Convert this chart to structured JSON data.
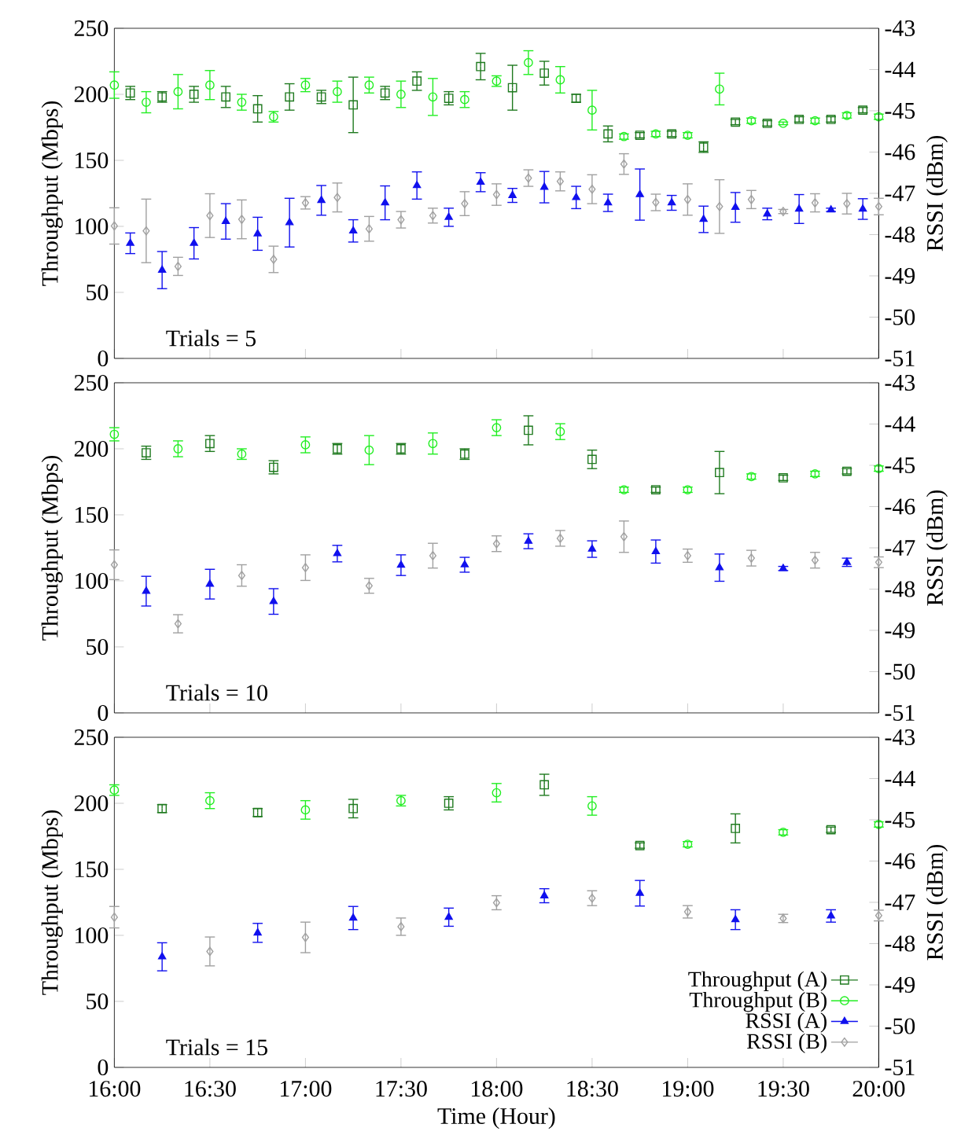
{
  "chart_data": [
    {
      "type": "scatter",
      "ylabel": "Throughput (Mbps)",
      "y2label": "RSSI (dBm)",
      "annotations": [
        "Trials = 5"
      ],
      "tick_labels": "y",
      "xlim": [
        16,
        20
      ],
      "xticks": [
        {
          "value": 16,
          "label": null
        },
        {
          "value": 16.5,
          "label": null
        },
        {
          "value": 17,
          "label": null
        },
        {
          "value": 17.5,
          "label": null
        },
        {
          "value": 18,
          "label": null
        },
        {
          "value": 18.5,
          "label": null
        },
        {
          "value": 19,
          "label": null
        },
        {
          "value": 19.5,
          "label": null
        },
        {
          "value": 20,
          "label": null
        }
      ],
      "ylim": [
        0,
        250
      ],
      "yticks": [
        0,
        50,
        100,
        150,
        200,
        250
      ],
      "y2lim": [
        -51,
        -43
      ],
      "y2ticks": [
        -51,
        -50,
        -49,
        -48,
        -47,
        -46,
        -45,
        -44,
        -43
      ],
      "series": [
        {
          "color": "#1f7a1f",
          "marker": "square",
          "x": [
            16.0833,
            16.25,
            16.4167,
            16.5833,
            16.75,
            16.9167,
            17.0833,
            17.25,
            17.4167,
            17.5833,
            17.75,
            17.9167,
            18.0833,
            18.25,
            18.4167,
            18.5833,
            18.75,
            18.9167,
            19.0833,
            19.25,
            19.4167,
            19.5833,
            19.75,
            19.9167
          ],
          "values": [
            201,
            198,
            200,
            198,
            189,
            198,
            198,
            192,
            201,
            210,
            197,
            221,
            205,
            216,
            197,
            170,
            169,
            170,
            160,
            179,
            178,
            181,
            181,
            188
          ],
          "errors": [
            5,
            4,
            6,
            8,
            10,
            10,
            5,
            21,
            5,
            7,
            5,
            10,
            17,
            9,
            3,
            6,
            2,
            2,
            4,
            2,
            2,
            2,
            2,
            2
          ]
        },
        {
          "color": "#22ee22",
          "marker": "circle",
          "x": [
            16,
            16.1667,
            16.3333,
            16.5,
            16.6667,
            16.8333,
            17,
            17.1667,
            17.3333,
            17.5,
            17.6667,
            17.8333,
            18,
            18.1667,
            18.3333,
            18.5,
            18.6667,
            18.8333,
            19,
            19.1667,
            19.3333,
            19.5,
            19.6667,
            19.8333,
            20
          ],
          "values": [
            207,
            194,
            202,
            207,
            194,
            183,
            207,
            202,
            207,
            200,
            198,
            196,
            210,
            224,
            211,
            188,
            168,
            170,
            169,
            204,
            180,
            178,
            180,
            184,
            183
          ],
          "errors": [
            10,
            8,
            13,
            11,
            6,
            4,
            5,
            8,
            6,
            10,
            14,
            6,
            4,
            9,
            10,
            15,
            2,
            2,
            2,
            12,
            2,
            1,
            2,
            2,
            2
          ]
        },
        {
          "color": "#1010ee",
          "marker": "triangle",
          "axis": "y2",
          "x": [
            16.0833,
            16.25,
            16.4167,
            16.5833,
            16.75,
            16.9167,
            17.0833,
            17.25,
            17.4167,
            17.5833,
            17.75,
            17.9167,
            18.0833,
            18.25,
            18.4167,
            18.5833,
            18.75,
            18.9167,
            19.0833,
            19.25,
            19.4167,
            19.5833,
            19.75,
            19.9167
          ],
          "values": [
            -48.21,
            -48.86,
            -48.21,
            -47.68,
            -47.98,
            -47.71,
            -47.17,
            -47.91,
            -47.23,
            -46.81,
            -47.58,
            -46.73,
            -47.05,
            -46.85,
            -47.1,
            -47.23,
            -47.03,
            -47.23,
            -47.63,
            -47.34,
            -47.5,
            -47.38,
            -47.4,
            -47.38
          ],
          "errors": [
            0.25,
            0.45,
            0.38,
            0.43,
            0.4,
            0.59,
            0.36,
            0.27,
            0.41,
            0.33,
            0.22,
            0.23,
            0.17,
            0.38,
            0.27,
            0.21,
            0.62,
            0.18,
            0.32,
            0.36,
            0.14,
            0.35,
            0.04,
            0.25
          ]
        },
        {
          "color": "#a0a0a0",
          "marker": "diamond",
          "axis": "y2",
          "x": [
            16,
            16.1667,
            16.3333,
            16.5,
            16.6667,
            16.8333,
            17,
            17.1667,
            17.3333,
            17.5,
            17.6667,
            17.8333,
            18,
            18.1667,
            18.3333,
            18.5,
            18.6667,
            18.8333,
            19,
            19.1667,
            19.3333,
            19.5,
            19.6667,
            19.8333,
            20
          ],
          "values": [
            -47.79,
            -47.91,
            -48.77,
            -47.54,
            -47.63,
            -48.6,
            -47.23,
            -47.1,
            -47.86,
            -47.64,
            -47.54,
            -47.25,
            -47.03,
            -46.63,
            -46.71,
            -46.9,
            -46.29,
            -47.22,
            -47.15,
            -47.32,
            -47.15,
            -47.44,
            -47.23,
            -47.25,
            -47.32
          ],
          "errors": [
            0.44,
            0.77,
            0.22,
            0.53,
            0.47,
            0.32,
            0.15,
            0.35,
            0.3,
            0.2,
            0.18,
            0.29,
            0.26,
            0.2,
            0.23,
            0.35,
            0.25,
            0.2,
            0.38,
            0.65,
            0.22,
            0.05,
            0.22,
            0.25,
            0.2
          ]
        }
      ]
    },
    {
      "type": "scatter",
      "ylabel": "Throughput (Mbps)",
      "y2label": "RSSI (dBm)",
      "annotations": [
        "Trials = 10"
      ],
      "tick_labels": "y",
      "xlim": [
        16,
        20
      ],
      "xticks": [
        {
          "value": 16,
          "label": null
        },
        {
          "value": 16.5,
          "label": null
        },
        {
          "value": 17,
          "label": null
        },
        {
          "value": 17.5,
          "label": null
        },
        {
          "value": 18,
          "label": null
        },
        {
          "value": 18.5,
          "label": null
        },
        {
          "value": 19,
          "label": null
        },
        {
          "value": 19.5,
          "label": null
        },
        {
          "value": 20,
          "label": null
        }
      ],
      "ylim": [
        0,
        250
      ],
      "yticks": [
        0,
        50,
        100,
        150,
        200,
        250
      ],
      "y2lim": [
        -51,
        -43
      ],
      "y2ticks": [
        -51,
        -50,
        -49,
        -48,
        -47,
        -46,
        -45,
        -44,
        -43
      ],
      "series": [
        {
          "color": "#1f7a1f",
          "marker": "square",
          "x": [
            16.1667,
            16.5,
            16.8333,
            17.1667,
            17.5,
            17.8333,
            18.1667,
            18.5,
            18.8333,
            19.1667,
            19.5,
            19.8333
          ],
          "values": [
            197,
            204,
            186,
            200,
            200,
            196,
            214,
            192,
            169,
            182,
            178,
            183
          ],
          "errors": [
            5,
            6,
            5,
            4,
            4,
            4,
            11,
            7,
            2,
            16,
            2,
            2
          ]
        },
        {
          "color": "#22ee22",
          "marker": "circle",
          "x": [
            16,
            16.3333,
            16.6667,
            17,
            17.3333,
            17.6667,
            18,
            18.3333,
            18.6667,
            19,
            19.3333,
            19.6667,
            20
          ],
          "values": [
            211,
            200,
            196,
            203,
            199,
            204,
            216,
            213,
            169,
            169,
            179,
            181,
            185
          ],
          "errors": [
            5,
            6,
            4,
            6,
            11,
            8,
            6,
            6,
            2,
            2,
            2,
            2,
            2
          ]
        },
        {
          "color": "#1010ee",
          "marker": "triangle",
          "axis": "y2",
          "x": [
            16.1667,
            16.5,
            16.8333,
            17.1667,
            17.5,
            17.8333,
            18.1667,
            18.5,
            18.8333,
            19.1667,
            19.5,
            19.8333
          ],
          "values": [
            -48.05,
            -47.88,
            -48.3,
            -47.14,
            -47.42,
            -47.41,
            -46.84,
            -47.03,
            -47.09,
            -47.48,
            -47.5,
            -47.35
          ],
          "errors": [
            0.36,
            0.36,
            0.31,
            0.2,
            0.25,
            0.18,
            0.18,
            0.2,
            0.28,
            0.33,
            0.05,
            0.1
          ]
        },
        {
          "color": "#a0a0a0",
          "marker": "diamond",
          "axis": "y2",
          "x": [
            16,
            16.3333,
            16.6667,
            17,
            17.3333,
            17.6667,
            18,
            18.3333,
            18.6667,
            19,
            19.3333,
            19.6667,
            20
          ],
          "values": [
            -47.41,
            -48.84,
            -47.67,
            -47.48,
            -47.92,
            -47.19,
            -46.9,
            -46.77,
            -46.73,
            -47.19,
            -47.25,
            -47.3,
            -47.35
          ],
          "errors": [
            0.36,
            0.22,
            0.26,
            0.31,
            0.18,
            0.3,
            0.19,
            0.19,
            0.38,
            0.16,
            0.19,
            0.19,
            0.13
          ]
        }
      ]
    },
    {
      "type": "scatter",
      "xlabel": "Time (Hour)",
      "ylabel": "Throughput (Mbps)",
      "y2label": "RSSI (dBm)",
      "annotations": [
        "Trials = 15"
      ],
      "legend": "bottom right",
      "xlim": [
        16,
        20
      ],
      "xticks": [
        {
          "value": 16,
          "label": "16:00"
        },
        {
          "value": 16.5,
          "label": "16:30"
        },
        {
          "value": 17,
          "label": "17:00"
        },
        {
          "value": 17.5,
          "label": "17:30"
        },
        {
          "value": 18,
          "label": "18:00"
        },
        {
          "value": 18.5,
          "label": "18:30"
        },
        {
          "value": 19,
          "label": "19:00"
        },
        {
          "value": 19.5,
          "label": "19:30"
        },
        {
          "value": 20,
          "label": "20:00"
        }
      ],
      "ylim": [
        0,
        250
      ],
      "yticks": [
        0,
        50,
        100,
        150,
        200,
        250
      ],
      "y2lim": [
        -51,
        -43
      ],
      "y2ticks": [
        -51,
        -50,
        -49,
        -48,
        -47,
        -46,
        -45,
        -44,
        -43
      ],
      "series": [
        {
          "name": "Throughput (A)",
          "color": "#1f7a1f",
          "marker": "square",
          "x": [
            16.25,
            16.75,
            17.25,
            17.75,
            18.25,
            18.75,
            19.25,
            19.75
          ],
          "values": [
            196,
            193,
            196,
            200,
            214,
            168,
            181,
            180
          ],
          "errors": [
            3,
            3,
            7,
            5,
            8,
            2,
            11,
            2
          ]
        },
        {
          "name": "Throughput (B)",
          "color": "#22ee22",
          "marker": "circle",
          "x": [
            16,
            16.5,
            17,
            17.5,
            18,
            18.5,
            19,
            19.5,
            20
          ],
          "values": [
            210,
            202,
            195,
            202,
            208,
            198,
            169,
            178,
            184
          ],
          "errors": [
            4,
            6,
            7,
            4,
            7,
            7,
            2,
            2,
            2
          ]
        },
        {
          "name": "RSSI (A)",
          "color": "#1010ee",
          "marker": "triangle",
          "axis": "y2",
          "x": [
            16.25,
            16.75,
            17.25,
            17.75,
            18.25,
            18.75,
            19.25,
            19.75
          ],
          "values": [
            -48.32,
            -47.74,
            -47.38,
            -47.36,
            -46.84,
            -46.78,
            -47.42,
            -47.33
          ],
          "errors": [
            0.34,
            0.23,
            0.28,
            0.22,
            0.17,
            0.31,
            0.24,
            0.15
          ]
        },
        {
          "name": "RSSI (B)",
          "color": "#a0a0a0",
          "marker": "diamond",
          "axis": "y2",
          "x": [
            16,
            16.5,
            17,
            17.5,
            18,
            18.5,
            19,
            19.5,
            20
          ],
          "values": [
            -47.36,
            -48.19,
            -47.85,
            -47.59,
            -47.01,
            -46.9,
            -47.23,
            -47.39,
            -47.32
          ],
          "errors": [
            0.26,
            0.35,
            0.37,
            0.21,
            0.17,
            0.18,
            0.15,
            0.1,
            0.13
          ]
        }
      ]
    }
  ]
}
